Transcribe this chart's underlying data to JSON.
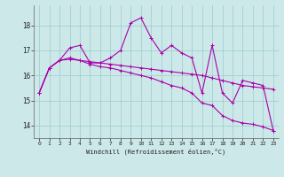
{
  "xlabel": "Windchill (Refroidissement éolien,°C)",
  "background_color": "#cce8e8",
  "grid_color": "#99cccc",
  "line_color": "#aa00aa",
  "x_values": [
    0,
    1,
    2,
    3,
    4,
    5,
    6,
    7,
    8,
    9,
    10,
    11,
    12,
    13,
    14,
    15,
    16,
    17,
    18,
    19,
    20,
    21,
    22,
    23
  ],
  "line1": [
    15.3,
    16.3,
    16.6,
    17.1,
    17.2,
    16.5,
    16.5,
    16.7,
    17.0,
    18.1,
    18.3,
    17.5,
    16.9,
    17.2,
    16.9,
    16.7,
    15.3,
    17.2,
    15.3,
    14.9,
    15.8,
    15.7,
    15.6,
    13.8
  ],
  "line2": [
    15.3,
    16.3,
    16.6,
    16.65,
    16.6,
    16.55,
    16.5,
    16.45,
    16.4,
    16.35,
    16.3,
    16.25,
    16.2,
    16.15,
    16.1,
    16.05,
    16.0,
    15.9,
    15.8,
    15.7,
    15.6,
    15.55,
    15.5,
    15.45
  ],
  "line3": [
    15.3,
    16.3,
    16.6,
    16.7,
    16.6,
    16.45,
    16.35,
    16.3,
    16.2,
    16.1,
    16.0,
    15.9,
    15.75,
    15.6,
    15.5,
    15.3,
    14.9,
    14.8,
    14.4,
    14.2,
    14.1,
    14.05,
    13.95,
    13.8
  ],
  "ylim": [
    13.5,
    18.8
  ],
  "yticks": [
    14,
    15,
    16,
    17,
    18
  ],
  "xticks": [
    0,
    1,
    2,
    3,
    4,
    5,
    6,
    7,
    8,
    9,
    10,
    11,
    12,
    13,
    14,
    15,
    16,
    17,
    18,
    19,
    20,
    21,
    22,
    23
  ]
}
